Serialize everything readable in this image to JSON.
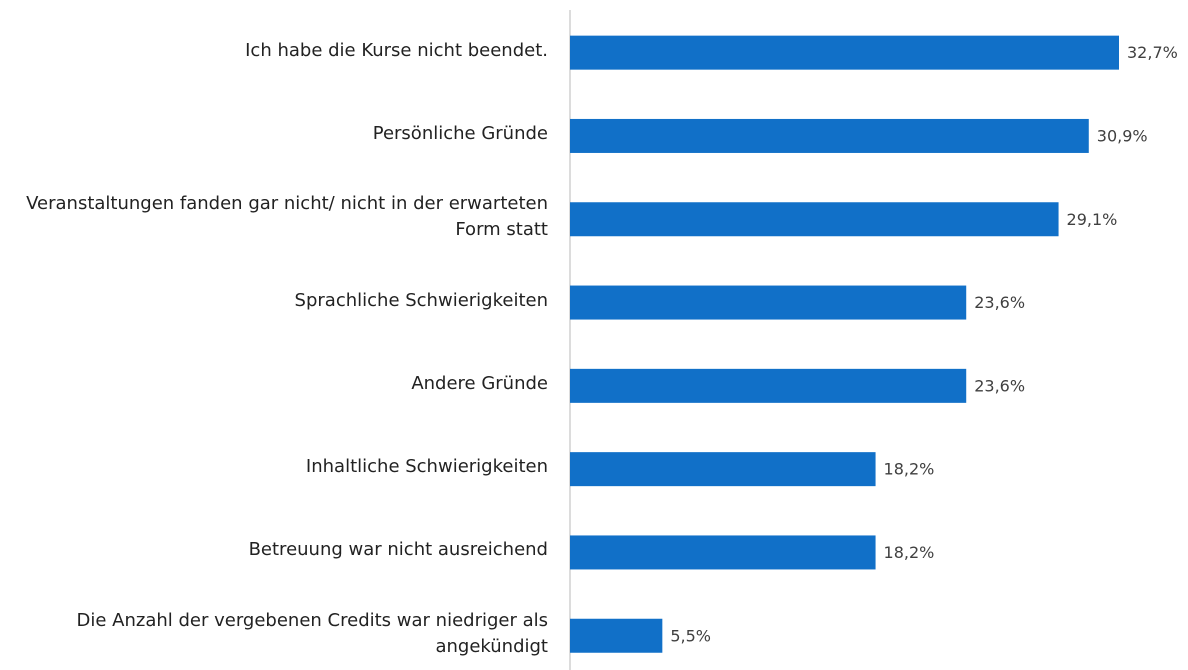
{
  "chart_data": {
    "type": "barh",
    "categories": [
      "Ich habe die Kurse nicht beendet.",
      "Persönliche Gründe",
      "Veranstaltungen fanden gar nicht/ nicht in der erwarteten Form statt",
      "Sprachliche Schwierigkeiten",
      "Andere Gründe",
      "Inhaltliche Schwierigkeiten",
      "Betreuung war nicht ausreichend",
      "Die Anzahl der vergebenen Credits war niedriger als angekündigt"
    ],
    "values": [
      32.7,
      30.9,
      29.1,
      23.6,
      23.6,
      18.2,
      18.2,
      5.5
    ],
    "value_labels": [
      "32,7%",
      "30,9%",
      "29,1%",
      "23,6%",
      "23,6%",
      "18,2%",
      "18,2%",
      "5,5%"
    ],
    "color": "#1170c8"
  }
}
